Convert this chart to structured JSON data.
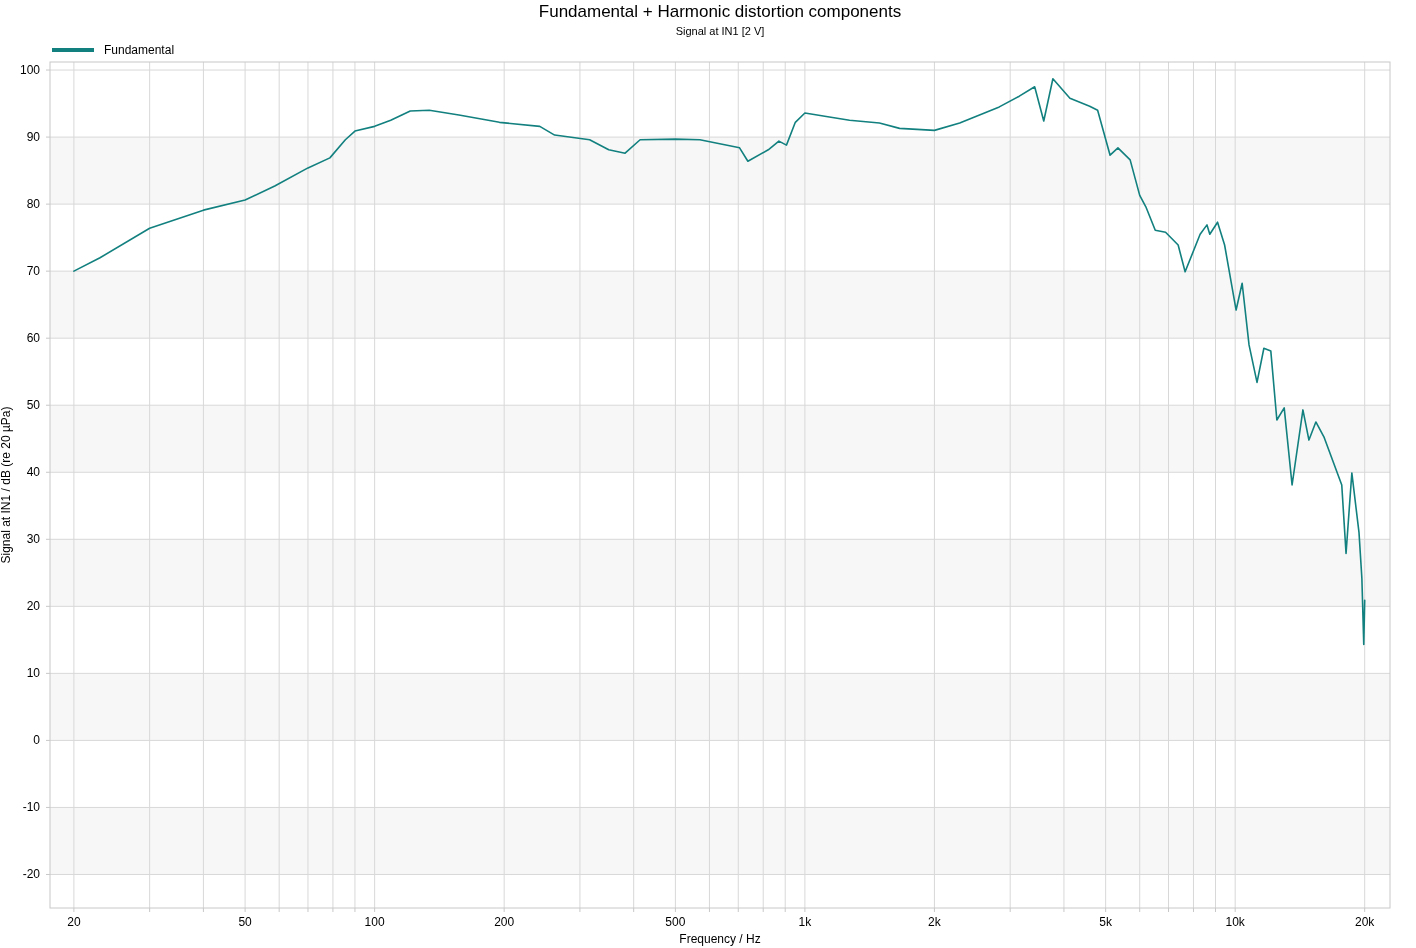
{
  "chart_data": {
    "type": "line",
    "title": "Fundamental + Harmonic distortion components",
    "subtitle": "Signal at IN1 [2 V]",
    "xlabel": "Frequency / Hz",
    "ylabel": "Signal at IN1 / dB (re 20 µPa)",
    "log": "x",
    "grid": true,
    "legend": "top left",
    "xlim": [
      17.6,
      22900
    ],
    "ylim": [
      -25,
      101.2
    ],
    "xticks": [
      20,
      {
        "value": 30,
        "label": null
      },
      {
        "value": 40,
        "label": null
      },
      50,
      {
        "value": 60,
        "label": null
      },
      {
        "value": 70,
        "label": null
      },
      {
        "value": 80,
        "label": null
      },
      {
        "value": 90,
        "label": null
      },
      100,
      200,
      {
        "value": 300,
        "label": null
      },
      {
        "value": 400,
        "label": null
      },
      500,
      {
        "value": 600,
        "label": null
      },
      {
        "value": 700,
        "label": null
      },
      {
        "value": 800,
        "label": null
      },
      {
        "value": 900,
        "label": null
      },
      {
        "value": 1000,
        "label": "1k"
      },
      {
        "value": 2000,
        "label": "2k"
      },
      {
        "value": 3000,
        "label": null
      },
      {
        "value": 4000,
        "label": null
      },
      {
        "value": 5000,
        "label": "5k"
      },
      {
        "value": 6000,
        "label": null
      },
      {
        "value": 7000,
        "label": null
      },
      {
        "value": 8000,
        "label": null
      },
      {
        "value": 9000,
        "label": null
      },
      {
        "value": 10000,
        "label": "10k"
      },
      {
        "value": 20000,
        "label": "20k"
      }
    ],
    "yticks": [
      -20,
      -10,
      0,
      10,
      20,
      30,
      40,
      50,
      60,
      70,
      80,
      90,
      100
    ],
    "series": [
      {
        "name": "Fundamental",
        "color": "#12807f",
        "x": [
          20,
          23,
          30,
          40,
          50,
          58.6,
          70,
          78.7,
          85.5,
          90,
          100,
          109,
          121,
          134,
          157,
          195,
          242,
          262,
          316,
          350,
          382,
          414,
          500,
          570,
          705,
          737,
          822,
          870,
          906,
          950,
          1000,
          1140,
          1270,
          1490,
          1660,
          2000,
          2290,
          2830,
          3150,
          3420,
          3590,
          3770,
          4130,
          4590,
          4790,
          5120,
          5340,
          5700,
          6000,
          6200,
          6520,
          6890,
          7370,
          7650,
          8290,
          8600,
          8730,
          9100,
          9450,
          10050,
          10380,
          10770,
          11240,
          11660,
          12100,
          12500,
          13000,
          13560,
          14370,
          14840,
          15400,
          16100,
          17690,
          18100,
          18670,
          19400,
          19700,
          19900,
          20000
        ],
        "values": [
          70,
          72,
          76.4,
          79.1,
          80.6,
          82.7,
          85.4,
          86.9,
          89.6,
          90.9,
          91.6,
          92.5,
          93.9,
          94,
          93.3,
          92.2,
          91.6,
          90.3,
          89.6,
          88.1,
          87.6,
          89.6,
          89.7,
          89.6,
          88.4,
          86.4,
          88.1,
          89.4,
          88.8,
          92.2,
          93.6,
          93,
          92.5,
          92.1,
          91.3,
          91,
          92.1,
          94.5,
          96.1,
          97.5,
          92.4,
          98.7,
          95.8,
          94.6,
          94,
          87.3,
          88.4,
          86.6,
          81.3,
          79.6,
          76.1,
          75.8,
          73.9,
          69.9,
          75.5,
          76.9,
          75.5,
          77.3,
          73.9,
          64.2,
          68.2,
          59,
          53.4,
          58.5,
          58.1,
          47.8,
          49.6,
          38.1,
          49.3,
          44.8,
          47.5,
          45.2,
          38.1,
          27.9,
          39.9,
          31,
          24.2,
          14.3,
          20.9
        ]
      }
    ]
  }
}
